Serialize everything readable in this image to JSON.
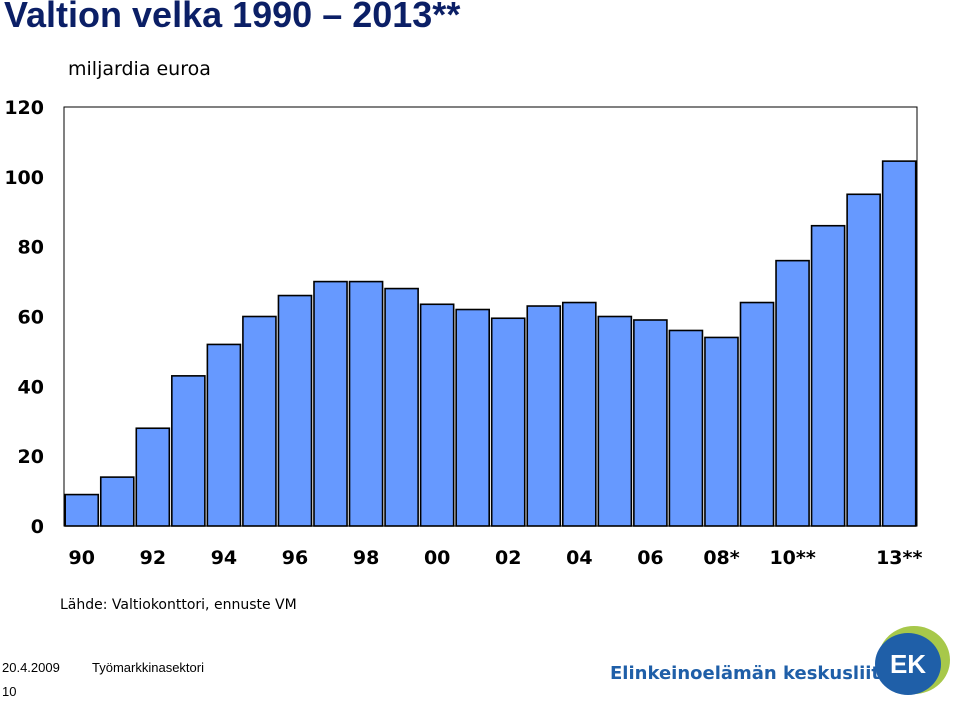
{
  "slide": {
    "title": "Valtion velka 1990 – 2013**",
    "source": "Lähde: Valtiokonttori, ennuste VM"
  },
  "footer": {
    "date": "20.4.2009",
    "sector": "Työmarkkinasektori",
    "page": "10",
    "organization": "Elinkeinoelämän keskusliitto",
    "logo_text": "EK"
  },
  "colors": {
    "title": "#0b1f66",
    "bar_fill": "#6699ff",
    "bar_stroke": "#000000",
    "brand_blue": "#1f5fa8",
    "brand_green": "#a7c84a"
  },
  "chart_data": {
    "type": "bar",
    "title": "",
    "ylabel": "miljardia euroa",
    "xlabel": "",
    "ylim": [
      0,
      120
    ],
    "yticks": [
      0,
      20,
      40,
      60,
      80,
      100,
      120
    ],
    "grid": false,
    "categories": [
      "1990",
      "1991",
      "1992",
      "1993",
      "1994",
      "1995",
      "1996",
      "1997",
      "1998",
      "1999",
      "2000",
      "2001",
      "2002",
      "2003",
      "2004",
      "2005",
      "2006",
      "2007",
      "2008*",
      "2009**",
      "2010**",
      "2011**",
      "2012**",
      "2013**"
    ],
    "tick_labels": [
      "90",
      "",
      "92",
      "",
      "94",
      "",
      "96",
      "",
      "98",
      "",
      "00",
      "",
      "02",
      "",
      "04",
      "",
      "06",
      "",
      "08*",
      "",
      "10**",
      "",
      "",
      "13**"
    ],
    "values": [
      9,
      14,
      28,
      43,
      52,
      60,
      66,
      70,
      70,
      68,
      63.5,
      62,
      59.5,
      63,
      64,
      60,
      59,
      56,
      54,
      64,
      76,
      86,
      95,
      104.5
    ]
  }
}
